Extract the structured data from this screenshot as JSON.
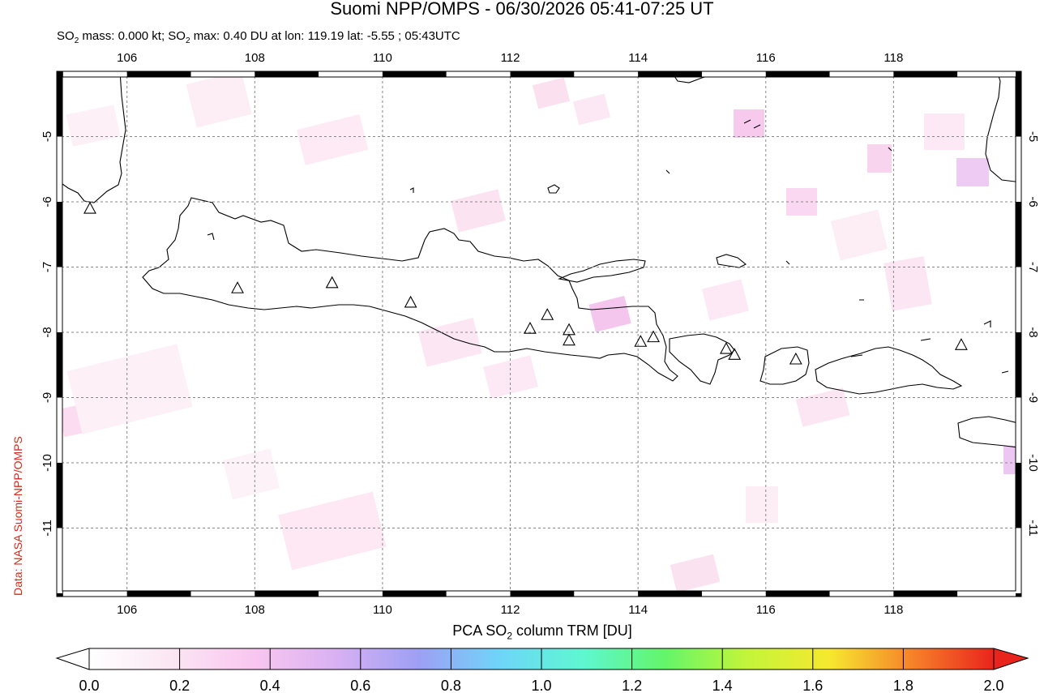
{
  "title": "Suomi NPP/OMPS - 06/30/2026 05:41-07:25 UT",
  "subtitle": {
    "prefix": "SO",
    "sub": "2",
    "mass_text": " mass: 0.000 kt; SO",
    "max_text": " max: 0.40 DU at lon: 119.19 lat: -5.55 ; 05:43UTC"
  },
  "credit": "Data: NASA Suomi-NPP/OMPS",
  "colorbar": {
    "title_prefix": "PCA SO",
    "title_sub": "2",
    "title_suffix": " column TRM [DU]",
    "ticks": [
      "0.0",
      "0.2",
      "0.4",
      "0.6",
      "0.8",
      "1.0",
      "1.2",
      "1.4",
      "1.6",
      "1.8",
      "2.0"
    ],
    "range": [
      0.0,
      2.0
    ],
    "stops": [
      "#ffffff",
      "#fbe6f3",
      "#f9c6f0",
      "#d9b1f2",
      "#9e9ff4",
      "#6fd5f8",
      "#5ef7d2",
      "#64f56a",
      "#c3f53a",
      "#f6e830",
      "#f6832a",
      "#e9241c"
    ]
  },
  "map": {
    "lon_range": [
      104.9,
      120.0
    ],
    "lat_range": [
      -12.05,
      -4.0
    ],
    "lon_ticks": [
      "106",
      "108",
      "110",
      "112",
      "114",
      "116",
      "118"
    ],
    "lat_ticks": [
      "-5",
      "-6",
      "-7",
      "-8",
      "-9",
      "-10",
      "-11"
    ],
    "gridlines": true
  },
  "volcanoes": [
    {
      "lon": 105.42,
      "lat": -6.1
    },
    {
      "lon": 107.73,
      "lat": -7.32
    },
    {
      "lon": 109.21,
      "lat": -7.24
    },
    {
      "lon": 110.44,
      "lat": -7.54
    },
    {
      "lon": 112.31,
      "lat": -7.94
    },
    {
      "lon": 112.58,
      "lat": -7.73
    },
    {
      "lon": 112.92,
      "lat": -7.96
    },
    {
      "lon": 112.92,
      "lat": -8.12
    },
    {
      "lon": 114.04,
      "lat": -8.14
    },
    {
      "lon": 114.24,
      "lat": -8.07
    },
    {
      "lon": 115.38,
      "lat": -8.25
    },
    {
      "lon": 115.51,
      "lat": -8.34
    },
    {
      "lon": 116.47,
      "lat": -8.41
    },
    {
      "lon": 119.06,
      "lat": -8.19
    }
  ]
}
